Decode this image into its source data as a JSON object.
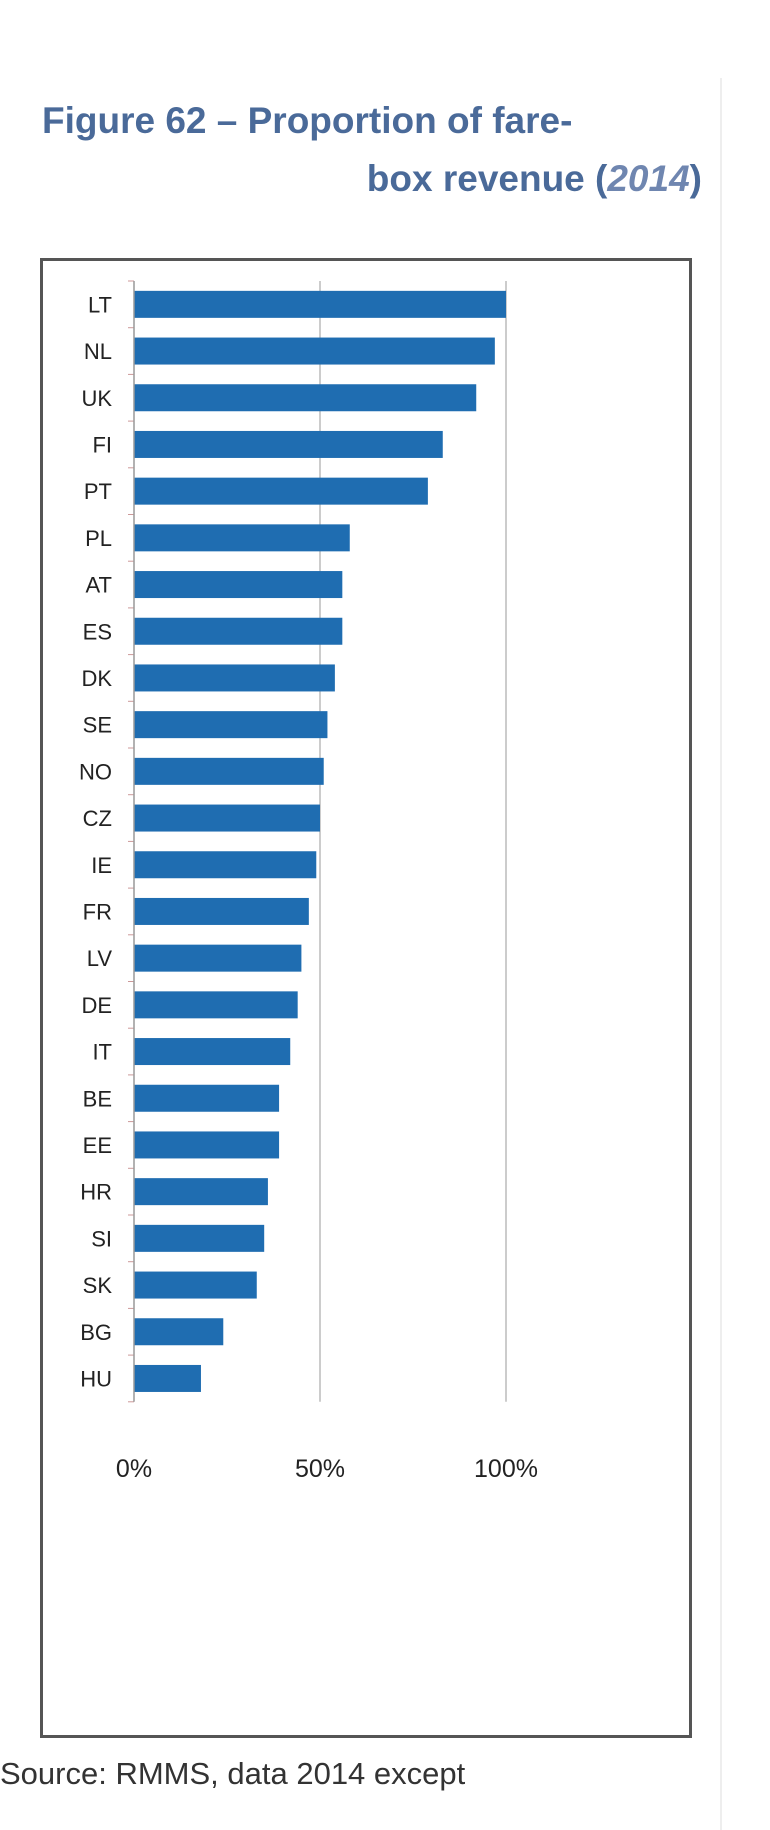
{
  "title": {
    "line1": "Figure 62 – Proportion of fare-",
    "line2_pre": "box revenue (",
    "line2_year": "2014",
    "line2_post": ")"
  },
  "source": "Source: RMMS, data 2014 except",
  "colors": {
    "bar": "#1f6db1",
    "title": "#4a6a99",
    "axis": "#999999",
    "gridline": "#999999"
  },
  "chart_data": {
    "type": "bar",
    "orientation": "horizontal",
    "categories": [
      "LT",
      "NL",
      "UK",
      "FI",
      "PT",
      "PL",
      "AT",
      "ES",
      "DK",
      "SE",
      "NO",
      "CZ",
      "IE",
      "FR",
      "LV",
      "DE",
      "IT",
      "BE",
      "EE",
      "HR",
      "SI",
      "SK",
      "BG",
      "HU"
    ],
    "values": [
      100,
      97,
      92,
      83,
      79,
      58,
      56,
      56,
      54,
      52,
      51,
      50,
      49,
      47,
      45,
      44,
      42,
      39,
      39,
      36,
      35,
      33,
      24,
      18
    ],
    "xlim": [
      0,
      100
    ],
    "x_ticks": [
      "0%",
      "50%",
      "100%"
    ],
    "gridlines": [
      50,
      100
    ],
    "unit": "%",
    "legend": "none"
  }
}
